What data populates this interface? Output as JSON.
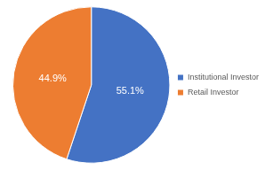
{
  "chart_data": {
    "type": "pie",
    "categories": [
      "Institutional Investor",
      "Retail Investor"
    ],
    "values": [
      55.1,
      44.9
    ],
    "value_labels": [
      "55.1%",
      "44.9%"
    ],
    "colors": [
      "#4472c4",
      "#ed7d31"
    ],
    "legend": "right",
    "data_labels": true
  }
}
